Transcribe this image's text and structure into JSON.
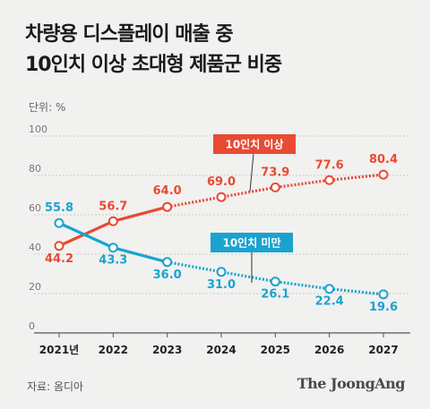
{
  "title_line1": "차량용 디스플레이 매출 중",
  "title_line2": "10인치 이상 초대형 제품군 비중",
  "unit": "단위: %",
  "source": "자료: 옴디아",
  "brand": "The JoongAng",
  "chart_data": {
    "type": "line",
    "categories": [
      "2021년",
      "2022",
      "2023",
      "2024",
      "2025",
      "2026",
      "2027"
    ],
    "ylim": [
      0,
      100
    ],
    "yticks": [
      0,
      20,
      40,
      60,
      80,
      100
    ],
    "grid": true,
    "series": [
      {
        "name": "10인치 이상",
        "color": "#e84a33",
        "values": [
          44.2,
          56.7,
          64.0,
          69.0,
          73.9,
          77.6,
          80.4
        ],
        "forecast_from_index": 2
      },
      {
        "name": "10인치 미만",
        "color": "#1aa3cf",
        "values": [
          55.8,
          43.3,
          36.0,
          31.0,
          26.1,
          22.4,
          19.6
        ],
        "forecast_from_index": 2
      }
    ],
    "data_labels": [
      [
        "44.2",
        "56.7",
        "64.0",
        "69.0",
        "73.9",
        "77.6",
        "80.4"
      ],
      [
        "55.8",
        "43.3",
        "36.0",
        "31.0",
        "26.1",
        "22.4",
        "19.6"
      ]
    ]
  }
}
